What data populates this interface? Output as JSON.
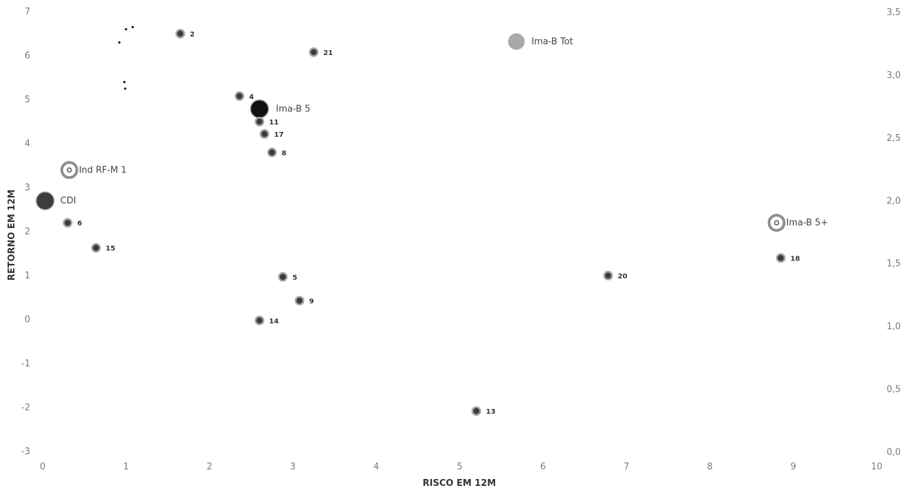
{
  "chart_data": {
    "type": "scatter",
    "title": "",
    "xlabel": "RISCO EM 12M",
    "ylabel": "RETORNO EM 12M",
    "xlim": [
      0,
      10
    ],
    "ylim": [
      -3,
      7
    ],
    "y2lim": [
      0.0,
      3.5
    ],
    "x_ticks": [
      "0",
      "1",
      "2",
      "3",
      "4",
      "5",
      "6",
      "7",
      "8",
      "9",
      "10"
    ],
    "y_ticks": [
      "-3",
      "-2",
      "-1",
      "0",
      "1",
      "2",
      "3",
      "4",
      "5",
      "6",
      "7"
    ],
    "y2_ticks": [
      "0,0",
      "0,5",
      "1,0",
      "1,5",
      "2,0",
      "2,5",
      "3,0",
      "3,5"
    ],
    "grid": false,
    "colors": {
      "dark_point": "#3c3c3c",
      "dark_point_ring": "#a8a8a8",
      "black_point": "#111111",
      "light_point": "#a9a9a9",
      "ring_point": "#8e8e8e"
    },
    "points": [
      {
        "label": "2",
        "x": 1.65,
        "y": 6.5,
        "style": "small"
      },
      {
        "label": "21",
        "x": 3.25,
        "y": 6.08,
        "style": "small"
      },
      {
        "label": "Ima-B Tot",
        "x": 5.68,
        "y": 6.32,
        "style": "light-big"
      },
      {
        "label": "4",
        "x": 2.36,
        "y": 5.08,
        "style": "small"
      },
      {
        "label": "Ima-B 5",
        "x": 2.6,
        "y": 4.79,
        "style": "black-big"
      },
      {
        "label": "11",
        "x": 2.6,
        "y": 4.5,
        "style": "small"
      },
      {
        "label": "17",
        "x": 2.66,
        "y": 4.22,
        "style": "small"
      },
      {
        "label": "8",
        "x": 2.75,
        "y": 3.8,
        "style": "small"
      },
      {
        "label": "Ind RF-M 1",
        "x": 0.32,
        "y": 3.4,
        "style": "ring"
      },
      {
        "label": "CDI",
        "x": 0.03,
        "y": 2.7,
        "style": "dark-big"
      },
      {
        "label": "6",
        "x": 0.3,
        "y": 2.2,
        "style": "small"
      },
      {
        "label": "15",
        "x": 0.64,
        "y": 1.63,
        "style": "small"
      },
      {
        "label": "Ima-B 5+",
        "x": 8.8,
        "y": 2.2,
        "style": "ring"
      },
      {
        "label": "18",
        "x": 8.85,
        "y": 1.4,
        "style": "small"
      },
      {
        "label": "20",
        "x": 6.78,
        "y": 1.0,
        "style": "small"
      },
      {
        "label": "5",
        "x": 2.88,
        "y": 0.97,
        "style": "small"
      },
      {
        "label": "9",
        "x": 3.08,
        "y": 0.43,
        "style": "small"
      },
      {
        "label": "14",
        "x": 2.6,
        "y": -0.02,
        "style": "small"
      },
      {
        "label": "13",
        "x": 5.2,
        "y": -2.08,
        "style": "small"
      },
      {
        "label": "",
        "x": 1.0,
        "y": 6.6,
        "style": "noise"
      },
      {
        "label": "",
        "x": 0.92,
        "y": 6.3,
        "style": "noise"
      },
      {
        "label": "",
        "x": 1.08,
        "y": 6.65,
        "style": "noise"
      },
      {
        "label": "",
        "x": 0.98,
        "y": 5.4,
        "style": "noise"
      },
      {
        "label": "",
        "x": 0.99,
        "y": 5.25,
        "style": "noise"
      }
    ]
  }
}
